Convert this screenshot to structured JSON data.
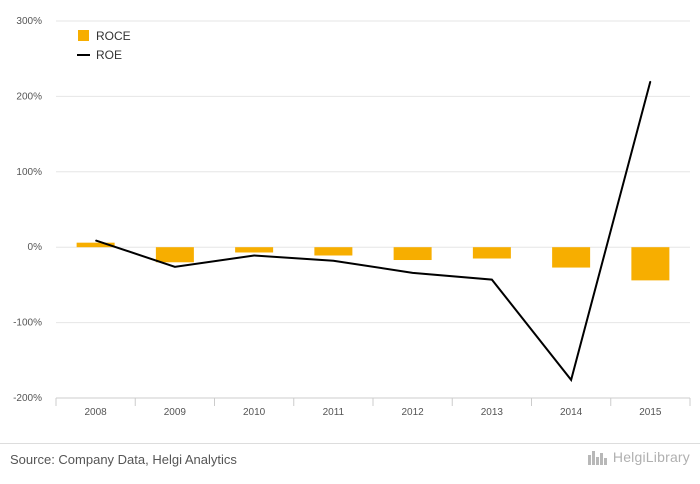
{
  "chart_data": {
    "type": "bar",
    "categories": [
      "2008",
      "2009",
      "2010",
      "2011",
      "2012",
      "2013",
      "2014",
      "2015"
    ],
    "series": [
      {
        "name": "ROCE",
        "type": "bar",
        "values": [
          6,
          -20,
          -7,
          -11,
          -17,
          -15,
          -27,
          -44
        ]
      },
      {
        "name": "ROE",
        "type": "line",
        "values": [
          9,
          -26,
          -11,
          -18,
          -34,
          -43,
          -176,
          220
        ]
      }
    ],
    "ylim": [
      -200,
      300
    ],
    "yticks": [
      -200,
      -100,
      0,
      100,
      200,
      300
    ],
    "ytick_labels": [
      "-200%",
      "-100%",
      "0%",
      "100%",
      "200%",
      "300%"
    ],
    "grid": true,
    "legend_position": "top-left"
  },
  "colors": {
    "roce": "#F7AE00",
    "roe": "#000000",
    "grid": "#e6e6e6",
    "axis": "#cccccc"
  },
  "footer": {
    "source": "Source: Company Data, Helgi Analytics",
    "logo_text": "HelgiLibrary"
  }
}
